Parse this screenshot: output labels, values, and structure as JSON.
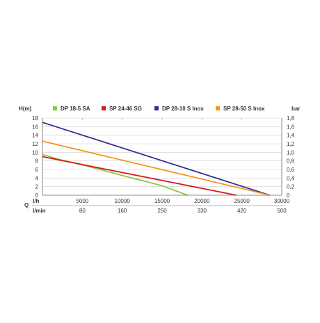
{
  "chart_data": {
    "type": "line",
    "left_axis_title": "H(m)",
    "right_axis_title": "bar",
    "y_left_ticks": [
      "0",
      "2",
      "4",
      "6",
      "8",
      "10",
      "12",
      "14",
      "16",
      "18"
    ],
    "y_right_ticks": [
      "0",
      "0,2",
      "0,4",
      "0,6",
      "0,8",
      "1,0",
      "1,2",
      "1,4",
      "1,6",
      "1,8"
    ],
    "ylim": [
      0,
      18
    ],
    "xlim": [
      0,
      30000
    ],
    "x_row1_label": "l/h",
    "x_row1_ticks": [
      "5000",
      "10000",
      "15000",
      "20000",
      "25000",
      "30000"
    ],
    "x_row1_values": [
      5000,
      10000,
      15000,
      20000,
      25000,
      30000
    ],
    "q_label": "Q",
    "x_row2_label": "l/min",
    "x_row2_ticks": [
      "80",
      "160",
      "250",
      "330",
      "420",
      "500"
    ],
    "grid": true,
    "legend_position": "top",
    "series": [
      {
        "name": "DP 18-5 SA",
        "color": "#8dc63f",
        "points": [
          [
            0,
            9.5
          ],
          [
            2000,
            8.4
          ],
          [
            5000,
            7.1
          ],
          [
            10000,
            4.6
          ],
          [
            15000,
            2.2
          ],
          [
            18200,
            0
          ]
        ]
      },
      {
        "name": "SP 24-46 SG",
        "color": "#d7191c",
        "points": [
          [
            0,
            9.0
          ],
          [
            24300,
            0
          ]
        ]
      },
      {
        "name": "DP 28-10 S Inox",
        "color": "#2e3192",
        "points": [
          [
            0,
            17.0
          ],
          [
            28500,
            0
          ]
        ]
      },
      {
        "name": "SP 28-50 S Inox",
        "color": "#f7941d",
        "points": [
          [
            0,
            12.6
          ],
          [
            28500,
            0
          ]
        ]
      }
    ]
  }
}
